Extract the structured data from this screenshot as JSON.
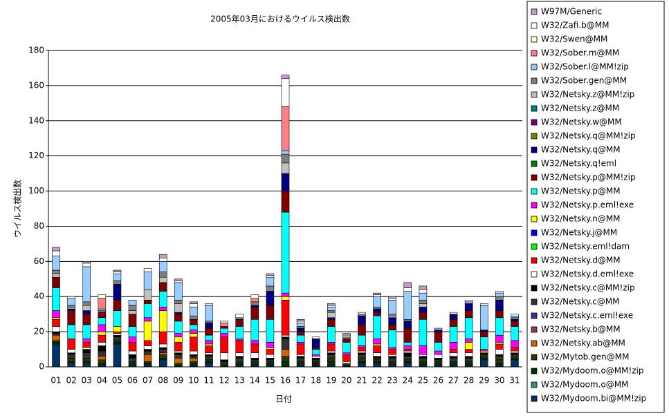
{
  "chart_data": {
    "type": "bar",
    "stacked": true,
    "title": "2005年03月におけるウイルス検出数",
    "y_label": "ウイルス検出数",
    "x_label": "日付",
    "categories": [
      "01",
      "02",
      "03",
      "04",
      "05",
      "06",
      "07",
      "08",
      "09",
      "10",
      "11",
      "12",
      "13",
      "14",
      "15",
      "16",
      "17",
      "18",
      "19",
      "20",
      "21",
      "22",
      "23",
      "24",
      "25",
      "26",
      "27",
      "28",
      "29",
      "30",
      "31"
    ],
    "ylim": [
      0,
      180
    ],
    "yticks": [
      0,
      20,
      40,
      60,
      80,
      100,
      120,
      140,
      160,
      180
    ],
    "grid": true,
    "legend": "right",
    "series": [
      {
        "name": "W97M/Generic",
        "color": "#cc99cc",
        "values": [
          2,
          0,
          1,
          0,
          1,
          0,
          0,
          2,
          1,
          1,
          0,
          0,
          0,
          0,
          1,
          2,
          1,
          0,
          1,
          1,
          0,
          1,
          1,
          3,
          2,
          0,
          0,
          0,
          0,
          0,
          0
        ]
      },
      {
        "name": "W32/Zafi.b@MM",
        "color": "#ffffff",
        "values": [
          3,
          1,
          2,
          2,
          1,
          0,
          2,
          2,
          1,
          2,
          1,
          1,
          2,
          2,
          1,
          16,
          1,
          1,
          1,
          1,
          1,
          1,
          1,
          2,
          2,
          0,
          1,
          1,
          1,
          1,
          1
        ]
      },
      {
        "name": "W32/Swen@MM",
        "color": "#ffffcc",
        "values": [
          0,
          0,
          0,
          0,
          0,
          0,
          0,
          0,
          0,
          0,
          0,
          0,
          0,
          0,
          0,
          0,
          0,
          0,
          0,
          0,
          0,
          0,
          0,
          0,
          0,
          0,
          0,
          0,
          0,
          0,
          0
        ]
      },
      {
        "name": "W32/Sober.m@MM",
        "color": "#ff8080",
        "values": [
          0,
          0,
          0,
          6,
          0,
          0,
          0,
          0,
          0,
          0,
          0,
          2,
          0,
          2,
          0,
          25,
          0,
          0,
          0,
          0,
          0,
          0,
          0,
          0,
          0,
          0,
          0,
          0,
          0,
          0,
          0
        ]
      },
      {
        "name": "W32/Sober.l@MM!zip",
        "color": "#99ccff",
        "values": [
          8,
          4,
          20,
          1,
          4,
          3,
          10,
          6,
          10,
          5,
          9,
          0,
          0,
          0,
          5,
          2,
          2,
          0,
          2,
          0,
          0,
          6,
          8,
          16,
          4,
          1,
          0,
          1,
          14,
          2,
          1
        ]
      },
      {
        "name": "W32/Sober.gen@MM",
        "color": "#808080",
        "values": [
          2,
          1,
          2,
          1,
          2,
          3,
          0,
          3,
          2,
          2,
          1,
          0,
          1,
          2,
          3,
          5,
          1,
          0,
          1,
          1,
          1,
          1,
          1,
          1,
          2,
          0,
          0,
          0,
          0,
          2,
          1
        ]
      },
      {
        "name": "W32/Netsky.z@MM!zip",
        "color": "#c0c0c0",
        "values": [
          2,
          1,
          3,
          0,
          0,
          2,
          6,
          3,
          5,
          0,
          0,
          0,
          0,
          0,
          0,
          6,
          0,
          0,
          3,
          0,
          0,
          0,
          1,
          0,
          2,
          0,
          0,
          0,
          0,
          0,
          0
        ]
      },
      {
        "name": "W32/Netsky.z@MM",
        "color": "#008080",
        "values": [
          0,
          0,
          0,
          0,
          0,
          0,
          0,
          0,
          0,
          0,
          0,
          0,
          0,
          0,
          0,
          0,
          0,
          0,
          0,
          0,
          0,
          0,
          0,
          0,
          0,
          0,
          0,
          0,
          0,
          0,
          0
        ]
      },
      {
        "name": "W32/Netsky.w@MM",
        "color": "#800080",
        "values": [
          0,
          0,
          0,
          0,
          0,
          0,
          0,
          0,
          0,
          0,
          0,
          0,
          0,
          0,
          0,
          0,
          0,
          0,
          0,
          0,
          0,
          0,
          0,
          0,
          0,
          0,
          0,
          0,
          0,
          0,
          0
        ]
      },
      {
        "name": "W32/Netsky.q@MM!zip",
        "color": "#808000",
        "values": [
          0,
          0,
          0,
          0,
          0,
          0,
          0,
          0,
          0,
          0,
          0,
          0,
          0,
          0,
          0,
          0,
          0,
          0,
          0,
          0,
          0,
          0,
          0,
          0,
          0,
          0,
          0,
          0,
          0,
          0,
          0
        ]
      },
      {
        "name": "W32/Netsky.q@MM",
        "color": "#000080",
        "values": [
          0,
          1,
          2,
          0,
          9,
          0,
          0,
          0,
          1,
          0,
          3,
          0,
          0,
          1,
          8,
          10,
          2,
          5,
          1,
          0,
          5,
          2,
          4,
          4,
          3,
          1,
          3,
          4,
          1,
          6,
          1
        ]
      },
      {
        "name": "W32/Netsky.q!eml",
        "color": "#008000",
        "values": [
          0,
          0,
          0,
          0,
          0,
          0,
          0,
          0,
          0,
          0,
          0,
          0,
          0,
          0,
          0,
          0,
          0,
          0,
          0,
          0,
          0,
          0,
          0,
          0,
          0,
          0,
          0,
          0,
          0,
          0,
          0
        ]
      },
      {
        "name": "W32/Netsky.p@MM!zip",
        "color": "#800000",
        "values": [
          6,
          8,
          6,
          3,
          6,
          7,
          2,
          5,
          4,
          3,
          4,
          1,
          4,
          7,
          8,
          12,
          2,
          1,
          4,
          2,
          6,
          2,
          3,
          8,
          4,
          6,
          4,
          4,
          3,
          4,
          3
        ]
      },
      {
        "name": "W32/Netsky.p@MM",
        "color": "#00ffff",
        "values": [
          13,
          8,
          8,
          4,
          9,
          6,
          8,
          9,
          7,
          3,
          3,
          3,
          7,
          12,
          13,
          46,
          4,
          3,
          9,
          6,
          6,
          13,
          10,
          2,
          15,
          5,
          9,
          12,
          7,
          10,
          8
        ]
      },
      {
        "name": "W32/Netsky.p.eml!exe",
        "color": "#ff00ff",
        "values": [
          4,
          0,
          2,
          4,
          0,
          3,
          2,
          2,
          2,
          2,
          2,
          2,
          1,
          2,
          3,
          2,
          1,
          1,
          1,
          1,
          1,
          3,
          1,
          2,
          5,
          2,
          4,
          2,
          1,
          4,
          4
        ]
      },
      {
        "name": "W32/Netsky.n@MM",
        "color": "#ffff00",
        "values": [
          1,
          0,
          0,
          2,
          3,
          0,
          11,
          12,
          3,
          2,
          1,
          0,
          0,
          0,
          1,
          2,
          0,
          0,
          0,
          0,
          0,
          1,
          0,
          0,
          0,
          0,
          0,
          4,
          1,
          1,
          0
        ]
      },
      {
        "name": "W32/Netsky.j@MM",
        "color": "#0000ff",
        "values": [
          0,
          0,
          0,
          0,
          0,
          0,
          0,
          0,
          0,
          0,
          0,
          0,
          0,
          0,
          0,
          0,
          0,
          0,
          0,
          0,
          0,
          0,
          0,
          0,
          0,
          0,
          0,
          0,
          0,
          0,
          0
        ]
      },
      {
        "name": "W32/Netsky.eml!dam",
        "color": "#00ff00",
        "values": [
          0,
          0,
          0,
          0,
          0,
          0,
          0,
          0,
          0,
          0,
          0,
          0,
          0,
          0,
          0,
          0,
          0,
          0,
          0,
          0,
          0,
          0,
          0,
          0,
          0,
          0,
          0,
          0,
          0,
          0,
          0
        ]
      },
      {
        "name": "W32/Netsky.d@MM",
        "color": "#ff0000",
        "values": [
          4,
          6,
          3,
          4,
          1,
          5,
          3,
          7,
          5,
          8,
          4,
          9,
          7,
          5,
          3,
          20,
          6,
          0,
          4,
          4,
          2,
          4,
          3,
          1,
          0,
          0,
          2,
          2,
          0,
          3,
          2
        ]
      },
      {
        "name": "W32/Netsky.d.eml!exe",
        "color": "#ffffff",
        "values": [
          3,
          2,
          1,
          2,
          1,
          2,
          2,
          2,
          1,
          2,
          1,
          4,
          2,
          3,
          2,
          1,
          1,
          1,
          1,
          1,
          1,
          2,
          1,
          1,
          1,
          2,
          2,
          2,
          0,
          3,
          1
        ]
      },
      {
        "name": "W32/Netsky.c@MM!zip",
        "color": "#000000",
        "values": [
          1,
          1,
          2,
          3,
          1,
          2,
          1,
          1,
          1,
          1,
          1,
          1,
          1,
          1,
          1,
          1,
          1,
          1,
          1,
          0,
          1,
          1,
          1,
          2,
          1,
          1,
          1,
          1,
          1,
          1,
          1
        ]
      },
      {
        "name": "W32/Netsky.c@MM",
        "color": "#333333",
        "values": [
          1,
          2,
          3,
          3,
          2,
          2,
          2,
          2,
          2,
          1,
          2,
          1,
          2,
          1,
          1,
          6,
          2,
          1,
          2,
          0,
          2,
          1,
          2,
          2,
          2,
          1,
          2,
          2,
          1,
          2,
          1
        ]
      },
      {
        "name": "W32/Netsky.c.eml!exe",
        "color": "#333399",
        "values": [
          0,
          0,
          0,
          0,
          0,
          0,
          0,
          0,
          0,
          0,
          0,
          0,
          0,
          0,
          0,
          0,
          0,
          0,
          0,
          0,
          0,
          0,
          0,
          0,
          0,
          0,
          0,
          0,
          0,
          0,
          0
        ]
      },
      {
        "name": "W32/Netsky.b@MM",
        "color": "#993366",
        "values": [
          0,
          0,
          0,
          0,
          0,
          0,
          0,
          0,
          0,
          0,
          0,
          0,
          0,
          0,
          0,
          0,
          0,
          0,
          0,
          0,
          0,
          0,
          0,
          0,
          0,
          0,
          0,
          0,
          0,
          0,
          0
        ]
      },
      {
        "name": "W32/Netsky.ab@MM",
        "color": "#cc6600",
        "values": [
          3,
          0,
          0,
          2,
          0,
          0,
          4,
          1,
          3,
          2,
          0,
          0,
          0,
          0,
          0,
          4,
          0,
          0,
          0,
          0,
          0,
          0,
          0,
          0,
          0,
          0,
          0,
          0,
          0,
          0,
          0
        ]
      },
      {
        "name": "W32/Mytob.gen@MM",
        "color": "#333300",
        "values": [
          1,
          2,
          2,
          2,
          1,
          1,
          1,
          2,
          1,
          1,
          1,
          1,
          1,
          1,
          1,
          3,
          1,
          1,
          2,
          1,
          2,
          1,
          1,
          1,
          1,
          1,
          1,
          1,
          1,
          2,
          1
        ]
      },
      {
        "name": "W32/Mydoom.o@MM!zip",
        "color": "#003300",
        "values": [
          1,
          1,
          1,
          1,
          1,
          1,
          1,
          1,
          1,
          1,
          1,
          1,
          1,
          1,
          1,
          3,
          1,
          1,
          2,
          1,
          1,
          1,
          1,
          1,
          1,
          1,
          1,
          1,
          1,
          1,
          1
        ]
      },
      {
        "name": "W32/Mydoom.o@MM",
        "color": "#339966",
        "values": [
          0,
          0,
          0,
          0,
          0,
          0,
          0,
          0,
          0,
          0,
          0,
          0,
          0,
          0,
          0,
          0,
          0,
          0,
          0,
          0,
          0,
          0,
          0,
          0,
          0,
          0,
          0,
          0,
          0,
          0,
          0
        ]
      },
      {
        "name": "W32/Mydoom.bi@MM!zip",
        "color": "#003366",
        "values": [
          13,
          2,
          2,
          1,
          13,
          1,
          1,
          4,
          0,
          1,
          2,
          0,
          1,
          1,
          1,
          0,
          1,
          1,
          1,
          0,
          2,
          2,
          1,
          2,
          1,
          1,
          1,
          1,
          4,
          1,
          4
        ]
      }
    ]
  }
}
